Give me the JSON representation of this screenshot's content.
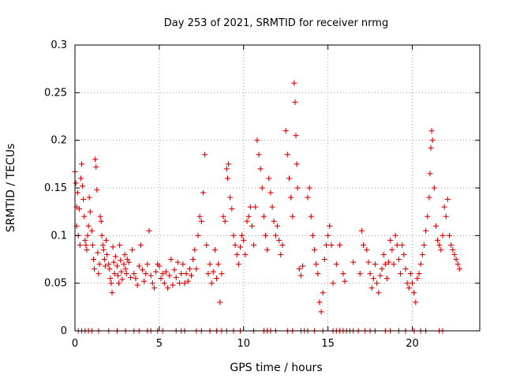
{
  "chart_data": {
    "type": "scatter",
    "title": "Day 253 of 2021, SRMTID for receiver nrmg",
    "xlabel": "GPS time / hours",
    "ylabel": "SRMTID / TECUs",
    "xlim": [
      0,
      24
    ],
    "ylim": [
      0,
      0.3
    ],
    "x_ticks": [
      0,
      5,
      10,
      15,
      20
    ],
    "x_tick_labels": [
      "0",
      "5",
      "10",
      "15",
      "20"
    ],
    "y_ticks": [
      0,
      0.05,
      0.1,
      0.15,
      0.2,
      0.25,
      0.3
    ],
    "y_tick_labels": [
      "0",
      "0.05",
      "0.1",
      "0.15",
      "0.2",
      "0.25",
      "0.3"
    ],
    "grid": true,
    "marker": "+",
    "color": "#e00000",
    "series": [
      {
        "name": "SRMTID",
        "points": [
          [
            0.0,
            0.167
          ],
          [
            0.05,
            0.155
          ],
          [
            0.1,
            0.13
          ],
          [
            0.1,
            0.11
          ],
          [
            0.15,
            0.145
          ],
          [
            0.2,
            0.1
          ],
          [
            0.25,
            0.128
          ],
          [
            0.3,
            0.09
          ],
          [
            0.35,
            0.16
          ],
          [
            0.4,
            0.175
          ],
          [
            0.45,
            0.152
          ],
          [
            0.5,
            0.138
          ],
          [
            0.55,
            0.12
          ],
          [
            0.6,
            0.095
          ],
          [
            0.65,
            0.09
          ],
          [
            0.7,
            0.085
          ],
          [
            0.75,
            0.1
          ],
          [
            0.8,
            0.11
          ],
          [
            0.85,
            0.14
          ],
          [
            0.9,
            0.125
          ],
          [
            1.0,
            0.105
          ],
          [
            1.05,
            0.09
          ],
          [
            1.1,
            0.075
          ],
          [
            1.15,
            0.065
          ],
          [
            1.2,
            0.18
          ],
          [
            1.25,
            0.172
          ],
          [
            1.3,
            0.148
          ],
          [
            1.35,
            0.082
          ],
          [
            1.4,
            0.06
          ],
          [
            1.45,
            0.07
          ],
          [
            1.5,
            0.12
          ],
          [
            1.55,
            0.115
          ],
          [
            1.6,
            0.1
          ],
          [
            1.65,
            0.09
          ],
          [
            1.7,
            0.085
          ],
          [
            1.75,
            0.075
          ],
          [
            1.8,
            0.068
          ],
          [
            1.85,
            0.095
          ],
          [
            1.9,
            0.08
          ],
          [
            2.0,
            0.07
          ],
          [
            2.05,
            0.065
          ],
          [
            2.1,
            0.055
          ],
          [
            2.15,
            0.05
          ],
          [
            2.2,
            0.04
          ],
          [
            2.25,
            0.088
          ],
          [
            2.3,
            0.072
          ],
          [
            2.35,
            0.06
          ],
          [
            2.4,
            0.078
          ],
          [
            2.5,
            0.068
          ],
          [
            2.55,
            0.058
          ],
          [
            2.6,
            0.05
          ],
          [
            2.65,
            0.09
          ],
          [
            2.7,
            0.074
          ],
          [
            2.75,
            0.062
          ],
          [
            2.8,
            0.054
          ],
          [
            2.9,
            0.07
          ],
          [
            2.95,
            0.08
          ],
          [
            3.0,
            0.065
          ],
          [
            3.05,
            0.06
          ],
          [
            3.1,
            0.075
          ],
          [
            3.2,
            0.072
          ],
          [
            3.3,
            0.056
          ],
          [
            3.4,
            0.085
          ],
          [
            3.5,
            0.06
          ],
          [
            3.6,
            0.055
          ],
          [
            3.7,
            0.048
          ],
          [
            3.8,
            0.068
          ],
          [
            3.9,
            0.09
          ],
          [
            4.0,
            0.064
          ],
          [
            4.1,
            0.052
          ],
          [
            4.2,
            0.06
          ],
          [
            4.3,
            0.07
          ],
          [
            4.4,
            0.105
          ],
          [
            4.5,
            0.058
          ],
          [
            4.6,
            0.05
          ],
          [
            4.7,
            0.045
          ],
          [
            4.8,
            0.062
          ],
          [
            4.9,
            0.07
          ],
          [
            5.0,
            0.068
          ],
          [
            5.1,
            0.055
          ],
          [
            5.2,
            0.06
          ],
          [
            5.3,
            0.05
          ],
          [
            5.4,
            0.062
          ],
          [
            5.5,
            0.045
          ],
          [
            5.6,
            0.058
          ],
          [
            5.7,
            0.075
          ],
          [
            5.8,
            0.048
          ],
          [
            5.9,
            0.064
          ],
          [
            6.0,
            0.056
          ],
          [
            6.1,
            0.072
          ],
          [
            6.2,
            0.05
          ],
          [
            6.3,
            0.06
          ],
          [
            6.4,
            0.07
          ],
          [
            6.5,
            0.05
          ],
          [
            6.6,
            0.06
          ],
          [
            6.7,
            0.052
          ],
          [
            6.8,
            0.065
          ],
          [
            6.9,
            0.058
          ],
          [
            7.0,
            0.075
          ],
          [
            7.1,
            0.085
          ],
          [
            7.2,
            0.065
          ],
          [
            7.3,
            0.1
          ],
          [
            7.4,
            0.12
          ],
          [
            7.5,
            0.115
          ],
          [
            7.6,
            0.145
          ],
          [
            7.7,
            0.185
          ],
          [
            7.8,
            0.09
          ],
          [
            7.9,
            0.06
          ],
          [
            8.0,
            0.07
          ],
          [
            8.1,
            0.05
          ],
          [
            8.2,
            0.062
          ],
          [
            8.3,
            0.085
          ],
          [
            8.4,
            0.055
          ],
          [
            8.5,
            0.07
          ],
          [
            8.6,
            0.03
          ],
          [
            8.7,
            0.06
          ],
          [
            8.8,
            0.12
          ],
          [
            8.9,
            0.115
          ],
          [
            9.0,
            0.17
          ],
          [
            9.05,
            0.16
          ],
          [
            9.1,
            0.175
          ],
          [
            9.2,
            0.14
          ],
          [
            9.3,
            0.128
          ],
          [
            9.4,
            0.1
          ],
          [
            9.5,
            0.09
          ],
          [
            9.6,
            0.08
          ],
          [
            9.7,
            0.07
          ],
          [
            9.8,
            0.088
          ],
          [
            9.9,
            0.1
          ],
          [
            10.0,
            0.095
          ],
          [
            10.1,
            0.08
          ],
          [
            10.2,
            0.115
          ],
          [
            10.3,
            0.12
          ],
          [
            10.4,
            0.13
          ],
          [
            10.5,
            0.11
          ],
          [
            10.6,
            0.09
          ],
          [
            10.7,
            0.13
          ],
          [
            10.8,
            0.2
          ],
          [
            10.9,
            0.185
          ],
          [
            11.0,
            0.17
          ],
          [
            11.1,
            0.15
          ],
          [
            11.2,
            0.12
          ],
          [
            11.3,
            0.1
          ],
          [
            11.4,
            0.085
          ],
          [
            11.5,
            0.16
          ],
          [
            11.6,
            0.145
          ],
          [
            11.7,
            0.13
          ],
          [
            11.8,
            0.115
          ],
          [
            11.9,
            0.1
          ],
          [
            12.0,
            0.11
          ],
          [
            12.1,
            0.095
          ],
          [
            12.2,
            0.08
          ],
          [
            12.3,
            0.09
          ],
          [
            12.5,
            0.21
          ],
          [
            12.6,
            0.185
          ],
          [
            12.7,
            0.16
          ],
          [
            12.8,
            0.14
          ],
          [
            12.9,
            0.12
          ],
          [
            13.0,
            0.26
          ],
          [
            13.05,
            0.24
          ],
          [
            13.1,
            0.205
          ],
          [
            13.15,
            0.175
          ],
          [
            13.2,
            0.15
          ],
          [
            13.3,
            0.065
          ],
          [
            13.4,
            0.058
          ],
          [
            13.5,
            0.068
          ],
          [
            13.8,
            0.14
          ],
          [
            13.9,
            0.15
          ],
          [
            14.0,
            0.12
          ],
          [
            14.1,
            0.1
          ],
          [
            14.2,
            0.085
          ],
          [
            14.3,
            0.07
          ],
          [
            14.4,
            0.06
          ],
          [
            14.5,
            0.03
          ],
          [
            14.6,
            0.02
          ],
          [
            14.7,
            0.04
          ],
          [
            14.8,
            0.075
          ],
          [
            14.9,
            0.09
          ],
          [
            15.0,
            0.1
          ],
          [
            15.1,
            0.11
          ],
          [
            15.2,
            0.09
          ],
          [
            15.3,
            0.05
          ],
          [
            15.5,
            0.07
          ],
          [
            15.7,
            0.09
          ],
          [
            15.9,
            0.06
          ],
          [
            16.0,
            0.052
          ],
          [
            16.5,
            0.072
          ],
          [
            16.9,
            0.06
          ],
          [
            17.0,
            0.105
          ],
          [
            17.1,
            0.09
          ],
          [
            17.3,
            0.085
          ],
          [
            17.4,
            0.072
          ],
          [
            17.5,
            0.06
          ],
          [
            17.6,
            0.045
          ],
          [
            17.7,
            0.055
          ],
          [
            17.8,
            0.07
          ],
          [
            17.9,
            0.05
          ],
          [
            18.0,
            0.04
          ],
          [
            18.1,
            0.058
          ],
          [
            18.2,
            0.065
          ],
          [
            18.3,
            0.08
          ],
          [
            18.4,
            0.07
          ],
          [
            18.5,
            0.055
          ],
          [
            18.6,
            0.072
          ],
          [
            18.7,
            0.095
          ],
          [
            18.8,
            0.085
          ],
          [
            18.9,
            0.07
          ],
          [
            19.0,
            0.1
          ],
          [
            19.1,
            0.09
          ],
          [
            19.2,
            0.075
          ],
          [
            19.3,
            0.06
          ],
          [
            19.4,
            0.09
          ],
          [
            19.5,
            0.08
          ],
          [
            19.6,
            0.065
          ],
          [
            19.7,
            0.05
          ],
          [
            19.8,
            0.045
          ],
          [
            19.9,
            0.06
          ],
          [
            20.0,
            0.05
          ],
          [
            20.1,
            0.04
          ],
          [
            20.2,
            0.03
          ],
          [
            20.3,
            0.055
          ],
          [
            20.4,
            0.06
          ],
          [
            20.5,
            0.07
          ],
          [
            20.6,
            0.08
          ],
          [
            20.7,
            0.09
          ],
          [
            20.8,
            0.105
          ],
          [
            20.9,
            0.12
          ],
          [
            21.0,
            0.14
          ],
          [
            21.05,
            0.165
          ],
          [
            21.1,
            0.192
          ],
          [
            21.15,
            0.21
          ],
          [
            21.2,
            0.2
          ],
          [
            21.3,
            0.15
          ],
          [
            21.4,
            0.11
          ],
          [
            21.5,
            0.095
          ],
          [
            21.6,
            0.09
          ],
          [
            21.7,
            0.085
          ],
          [
            21.8,
            0.1
          ],
          [
            21.9,
            0.13
          ],
          [
            22.0,
            0.12
          ],
          [
            22.1,
            0.138
          ],
          [
            22.2,
            0.1
          ],
          [
            22.3,
            0.09
          ],
          [
            22.4,
            0.085
          ],
          [
            22.5,
            0.08
          ],
          [
            22.6,
            0.075
          ],
          [
            22.7,
            0.07
          ],
          [
            22.8,
            0.065
          ]
        ],
        "zero_values_x": [
          0.2,
          0.4,
          0.6,
          0.8,
          1.0,
          1.4,
          2.0,
          2.5,
          3.0,
          3.5,
          3.8,
          4.3,
          4.5,
          4.9,
          5.2,
          6.0,
          6.3,
          6.5,
          7.2,
          7.5,
          8.0,
          8.4,
          8.7,
          9.0,
          9.4,
          9.8,
          10.6,
          11.2,
          11.4,
          11.6,
          11.9,
          12.6,
          12.9,
          13.4,
          13.6,
          13.8,
          14.2,
          14.7,
          15.3,
          15.5,
          15.7,
          15.9,
          16.1,
          16.3,
          16.5,
          16.8,
          17.2,
          17.5,
          17.8,
          18.4,
          18.7,
          19.2,
          19.6,
          20.1,
          20.5,
          20.8,
          21.6,
          21.8
        ]
      }
    ]
  }
}
